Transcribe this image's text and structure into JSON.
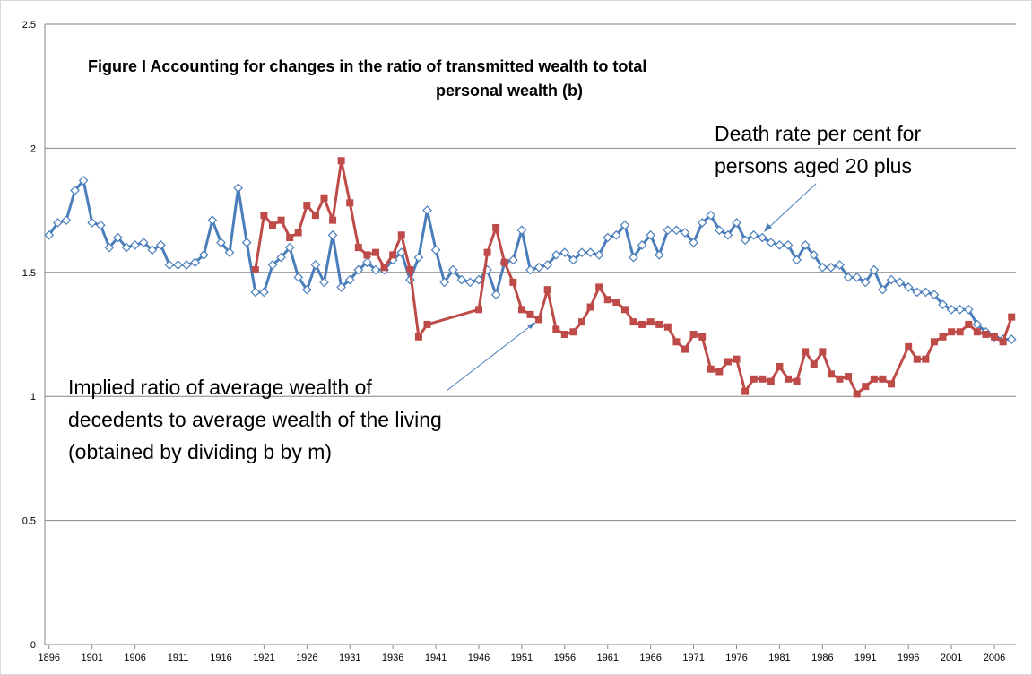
{
  "chart_data": {
    "type": "line",
    "title_lines": [
      "Figure I Accounting for changes in the ratio of transmitted wealth to total",
      "personal wealth (b)"
    ],
    "annotations": [
      {
        "lines": [
          "Death rate per cent for",
          "persons aged 20 plus"
        ]
      },
      {
        "lines": [
          "Implied ratio of average wealth of",
          "decedents to average wealth of the living",
          "(obtained by dividing b by m)"
        ]
      }
    ],
    "xlim": [
      1895.5,
      2008.5
    ],
    "xticks": [
      1896,
      1901,
      1906,
      1911,
      1916,
      1921,
      1926,
      1931,
      1936,
      1941,
      1946,
      1951,
      1956,
      1961,
      1966,
      1971,
      1976,
      1981,
      1986,
      1991,
      1996,
      2001,
      2006
    ],
    "ylim": [
      0,
      2.5
    ],
    "yticks": [
      0,
      0.5,
      1,
      1.5,
      2,
      2.5
    ],
    "grid": true,
    "series": [
      {
        "color": "#4a7ebb",
        "marker": "diamond",
        "x": [
          1896,
          1897,
          1898,
          1899,
          1900,
          1901,
          1902,
          1903,
          1904,
          1905,
          1906,
          1907,
          1908,
          1909,
          1910,
          1911,
          1912,
          1913,
          1914,
          1915,
          1916,
          1917,
          1918,
          1919,
          1920,
          1921,
          1922,
          1923,
          1924,
          1925,
          1926,
          1927,
          1928,
          1929,
          1930,
          1931,
          1932,
          1933,
          1934,
          1935,
          1936,
          1937,
          1938,
          1939,
          1940,
          1941,
          1942,
          1943,
          1944,
          1945,
          1946,
          1947,
          1948,
          1949,
          1950,
          1951,
          1952,
          1953,
          1954,
          1955,
          1956,
          1957,
          1958,
          1959,
          1960,
          1961,
          1962,
          1963,
          1964,
          1965,
          1966,
          1967,
          1968,
          1969,
          1970,
          1971,
          1972,
          1973,
          1974,
          1975,
          1976,
          1977,
          1978,
          1979,
          1980,
          1981,
          1982,
          1983,
          1984,
          1985,
          1986,
          1987,
          1988,
          1989,
          1990,
          1991,
          1992,
          1993,
          1994,
          1995,
          1996,
          1997,
          1998,
          1999,
          2000,
          2001,
          2002,
          2003,
          2004,
          2005,
          2006,
          2007,
          2008
        ],
        "values": [
          1.65,
          1.7,
          1.71,
          1.83,
          1.87,
          1.7,
          1.69,
          1.6,
          1.64,
          1.6,
          1.61,
          1.62,
          1.59,
          1.61,
          1.53,
          1.53,
          1.53,
          1.54,
          1.57,
          1.71,
          1.62,
          1.58,
          1.84,
          1.62,
          1.42,
          1.42,
          1.53,
          1.56,
          1.6,
          1.48,
          1.43,
          1.53,
          1.46,
          1.65,
          1.44,
          1.47,
          1.51,
          1.54,
          1.51,
          1.51,
          1.55,
          1.58,
          1.47,
          1.56,
          1.75,
          1.59,
          1.46,
          1.51,
          1.47,
          1.46,
          1.47,
          1.51,
          1.41,
          1.54,
          1.55,
          1.67,
          1.51,
          1.52,
          1.53,
          1.57,
          1.58,
          1.55,
          1.58,
          1.58,
          1.57,
          1.64,
          1.65,
          1.69,
          1.56,
          1.61,
          1.65,
          1.57,
          1.67,
          1.67,
          1.66,
          1.62,
          1.7,
          1.73,
          1.67,
          1.65,
          1.7,
          1.63,
          1.65,
          1.64,
          1.62,
          1.61,
          1.61,
          1.55,
          1.61,
          1.57,
          1.52,
          1.52,
          1.53,
          1.48,
          1.48,
          1.46,
          1.51,
          1.43,
          1.47,
          1.46,
          1.44,
          1.42,
          1.42,
          1.41,
          1.37,
          1.35,
          1.35,
          1.35,
          1.29,
          1.26,
          1.24,
          1.23,
          1.23
        ]
      },
      {
        "color": "#be4b48",
        "marker": "square",
        "x": [
          1920,
          1921,
          1922,
          1923,
          1924,
          1925,
          1926,
          1927,
          1928,
          1929,
          1930,
          1931,
          1932,
          1933,
          1934,
          1935,
          1936,
          1937,
          1938,
          1939,
          1940,
          1946,
          1947,
          1948,
          1949,
          1950,
          1951,
          1952,
          1953,
          1954,
          1955,
          1956,
          1957,
          1958,
          1959,
          1960,
          1961,
          1962,
          1963,
          1964,
          1965,
          1966,
          1967,
          1968,
          1969,
          1970,
          1971,
          1972,
          1973,
          1974,
          1975,
          1976,
          1977,
          1978,
          1979,
          1980,
          1981,
          1982,
          1983,
          1984,
          1985,
          1986,
          1987,
          1988,
          1989,
          1990,
          1991,
          1992,
          1993,
          1994,
          1996,
          1997,
          1998,
          1999,
          2000,
          2001,
          2002,
          2003,
          2004,
          2005,
          2006,
          2007,
          2008
        ],
        "values": [
          1.51,
          1.73,
          1.69,
          1.71,
          1.64,
          1.66,
          1.77,
          1.73,
          1.8,
          1.71,
          1.95,
          1.78,
          1.6,
          1.57,
          1.58,
          1.52,
          1.57,
          1.65,
          1.51,
          1.24,
          1.29,
          1.35,
          1.58,
          1.68,
          1.54,
          1.46,
          1.35,
          1.33,
          1.31,
          1.43,
          1.27,
          1.25,
          1.26,
          1.3,
          1.36,
          1.44,
          1.39,
          1.38,
          1.35,
          1.3,
          1.29,
          1.3,
          1.29,
          1.28,
          1.22,
          1.19,
          1.25,
          1.24,
          1.11,
          1.1,
          1.14,
          1.15,
          1.02,
          1.07,
          1.07,
          1.06,
          1.12,
          1.07,
          1.06,
          1.18,
          1.13,
          1.18,
          1.09,
          1.07,
          1.08,
          1.01,
          1.04,
          1.07,
          1.07,
          1.05,
          1.2,
          1.15,
          1.15,
          1.22,
          1.24,
          1.26,
          1.26,
          1.29,
          1.26,
          1.25,
          1.24,
          1.22,
          1.32
        ]
      }
    ]
  }
}
